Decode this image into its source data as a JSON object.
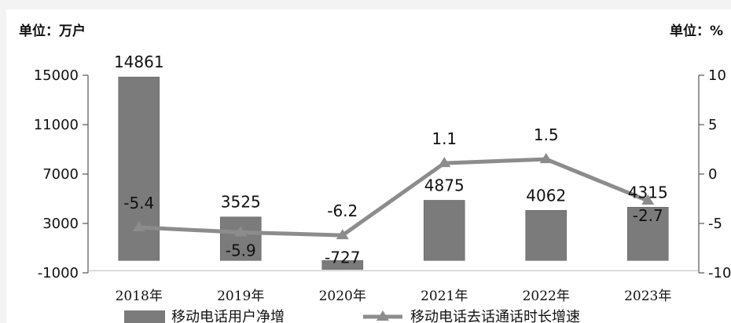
{
  "chart_data": {
    "type": "bar",
    "left_unit": "单位：万户",
    "right_unit": "单位：%",
    "categories": [
      "2018年",
      "2019年",
      "2020年",
      "2021年",
      "2022年",
      "2023年"
    ],
    "y_ticks": [
      "15000",
      "11000",
      "7000",
      "3000",
      "-1000"
    ],
    "y2_ticks": [
      "10",
      "5",
      "0",
      "-5",
      "-10"
    ],
    "ylim": [
      -1000,
      15000
    ],
    "y2lim": [
      -10,
      10
    ],
    "series": [
      {
        "name": "移动电话用户净增",
        "type": "bar",
        "axis": "left",
        "color": "#7b7b7b",
        "values": [
          14861,
          3525,
          -727,
          4875,
          4062,
          4315
        ],
        "labels": [
          "14861",
          "3525",
          "-727",
          "4875",
          "4062",
          "4315"
        ]
      },
      {
        "name": "移动电话去话通话时长增速",
        "type": "line",
        "axis": "right",
        "color": "#8c8c8c",
        "values": [
          -5.4,
          -5.9,
          -6.2,
          1.1,
          1.5,
          -2.7
        ],
        "labels": [
          "-5.4",
          "-5.9",
          "-6.2",
          "1.1",
          "1.5",
          "-2.7"
        ]
      }
    ],
    "legend": "bottom",
    "grid": false
  }
}
